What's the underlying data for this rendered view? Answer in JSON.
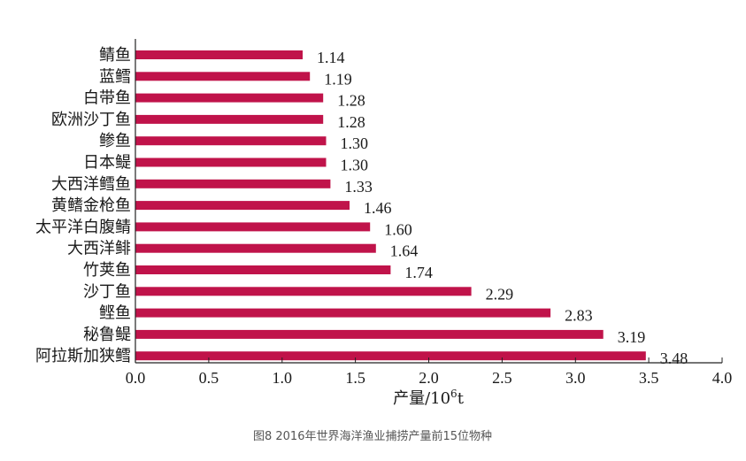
{
  "chart_data": {
    "type": "bar",
    "orientation": "horizontal",
    "categories": [
      "鲭鱼",
      "蓝鳕",
      "白带鱼",
      "欧洲沙丁鱼",
      "鲹鱼",
      "日本鳀",
      "大西洋鳕鱼",
      "黄鳍金枪鱼",
      "太平洋白腹鲭",
      "大西洋鲱",
      "竹荚鱼",
      "沙丁鱼",
      "鲣鱼",
      "秘鲁鳀",
      "阿拉斯加狭鳕"
    ],
    "values": [
      1.14,
      1.19,
      1.28,
      1.28,
      1.3,
      1.3,
      1.33,
      1.46,
      1.6,
      1.64,
      1.74,
      2.29,
      2.83,
      3.19,
      3.48
    ],
    "value_labels": [
      "1.14",
      "1.19",
      "1.28",
      "1.28",
      "1.30",
      "1.30",
      "1.33",
      "1.46",
      "1.60",
      "1.64",
      "1.74",
      "2.29",
      "2.83",
      "3.19",
      "3.48"
    ],
    "xlabel_main": "产量/10",
    "xlabel_sup": "6",
    "xlabel_unit": "t",
    "xlim": [
      0.0,
      4.0
    ],
    "xticks": [
      0.0,
      0.5,
      1.0,
      1.5,
      2.0,
      2.5,
      3.0,
      3.5,
      4.0
    ],
    "xtick_labels": [
      "0.0",
      "0.5",
      "1.0",
      "1.5",
      "2.0",
      "2.5",
      "3.0",
      "3.5",
      "4.0"
    ],
    "grid": false,
    "legend": "none",
    "bar_color": "#c0134a",
    "caption": "图8 2016年世界海洋渔业捕捞产量前15位物种"
  }
}
